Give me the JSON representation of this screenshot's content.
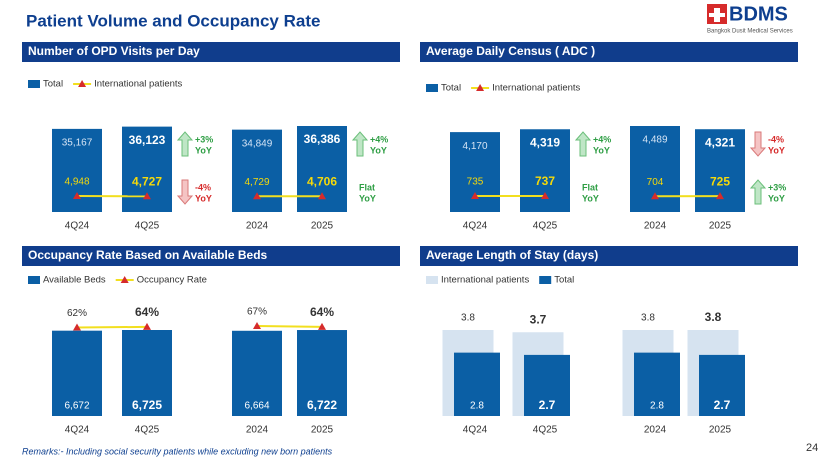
{
  "title": "Patient Volume and Occupancy Rate",
  "logo": {
    "name": "BDMS",
    "tagline": "Bangkok Dusit Medical Services"
  },
  "remarks": "Remarks:- Including social security patients while excluding new born patients",
  "page_number": "24",
  "chart_data": [
    {
      "type": "bar",
      "title": "Number of OPD Visits per Day",
      "categories": [
        "4Q24",
        "4Q25",
        "2024",
        "2025"
      ],
      "series": [
        {
          "name": "Total",
          "color": "#0b5fa5",
          "values": [
            35167,
            36123,
            34849,
            36386
          ],
          "value_labels": [
            "35,167",
            "36,123",
            "34,849",
            "36,386"
          ]
        },
        {
          "name": "International patients",
          "type": "line",
          "color": "#f2df1f",
          "marker_color": "#d62b2b",
          "values": [
            4948,
            4727,
            4729,
            4706
          ],
          "value_labels": [
            "4,948",
            "4,727",
            "4,729",
            "4,706"
          ]
        }
      ],
      "annotations": [
        {
          "text": "+3%",
          "sub": "YoY",
          "trend": "up",
          "color": "#2e9e44"
        },
        {
          "text": "-4%",
          "sub": "YoY",
          "trend": "down",
          "color": "#d62b2b"
        },
        {
          "text": "+4%",
          "sub": "YoY",
          "trend": "up",
          "color": "#2e9e44"
        },
        {
          "text": "Flat",
          "sub": "YoY",
          "trend": "flat",
          "color": "#2e9e44"
        }
      ]
    },
    {
      "type": "bar",
      "title": "Average Daily Census ( ADC )",
      "categories": [
        "4Q24",
        "4Q25",
        "2024",
        "2025"
      ],
      "series": [
        {
          "name": "Total",
          "color": "#0b5fa5",
          "values": [
            4170,
            4319,
            4489,
            4321
          ],
          "value_labels": [
            "4,170",
            "4,319",
            "4,489",
            "4,321"
          ]
        },
        {
          "name": "International patients",
          "type": "line",
          "color": "#f2df1f",
          "marker_color": "#d62b2b",
          "values": [
            735,
            737,
            704,
            725
          ]
        }
      ],
      "annotations": [
        {
          "text": "+4%",
          "sub": "YoY",
          "trend": "up",
          "color": "#2e9e44"
        },
        {
          "text": "Flat",
          "sub": "YoY",
          "trend": "flat",
          "color": "#2e9e44"
        },
        {
          "text": "-4%",
          "sub": "YoY",
          "trend": "down",
          "color": "#d62b2b"
        },
        {
          "text": "+3%",
          "sub": "YoY",
          "trend": "up",
          "color": "#2e9e44"
        }
      ]
    },
    {
      "type": "bar",
      "title": "Occupancy Rate Based on Available Beds",
      "categories": [
        "4Q24",
        "4Q25",
        "2024",
        "2025"
      ],
      "series": [
        {
          "name": "Available Beds",
          "color": "#0b5fa5",
          "values": [
            6672,
            6725,
            6664,
            6722
          ],
          "value_labels": [
            "6,672",
            "6,725",
            "6,664",
            "6,722"
          ]
        },
        {
          "name": "Occupancy Rate",
          "type": "line",
          "color": "#f2df1f",
          "marker_color": "#d62b2b",
          "values": [
            62,
            64,
            67,
            64
          ],
          "value_labels": [
            "62%",
            "64%",
            "67%",
            "64%"
          ]
        }
      ]
    },
    {
      "type": "bar",
      "title": "Average Length of Stay (days)",
      "categories": [
        "4Q24",
        "4Q25",
        "2024",
        "2025"
      ],
      "series": [
        {
          "name": "International patients",
          "color": "#d6e3f0",
          "values": [
            3.8,
            3.7,
            3.8,
            3.8
          ]
        },
        {
          "name": "Total",
          "color": "#0b5fa5",
          "values": [
            2.8,
            2.7,
            2.8,
            2.7
          ]
        }
      ]
    }
  ]
}
